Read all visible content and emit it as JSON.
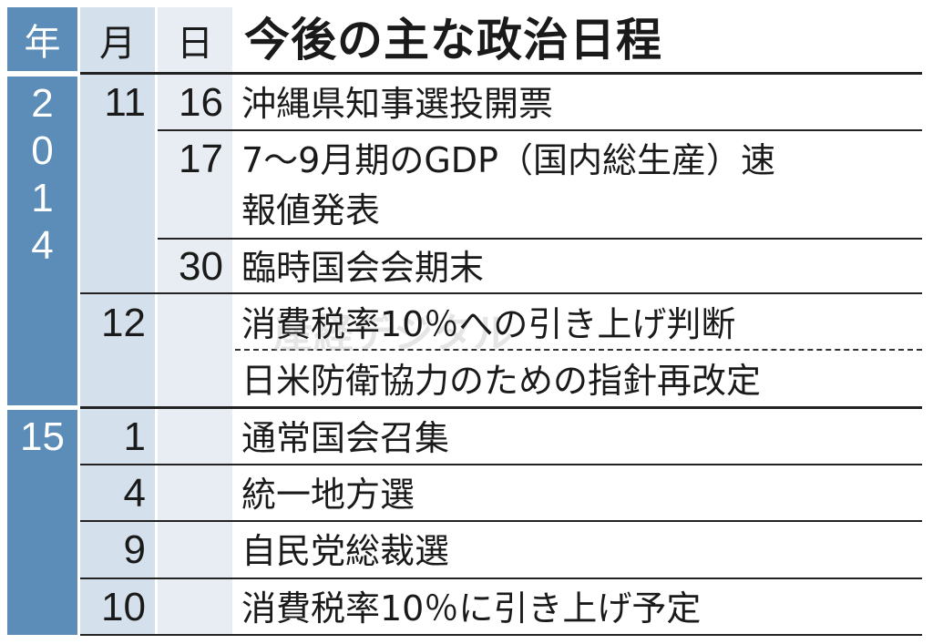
{
  "header": {
    "year": "年",
    "month": "月",
    "day": "日",
    "title": "今後の主な政治日程"
  },
  "colors": {
    "year_column": "#5b8db8",
    "month_column": "#d4e0eb",
    "day_column": "#e7edf3"
  },
  "years": [
    "2\n0\n1\n4",
    "15"
  ],
  "rows": [
    {
      "month": "11",
      "day": "16",
      "event": "沖縄県知事選投開票"
    },
    {
      "month": "",
      "day": "17",
      "event": "7～9月期のGDP（国内総生産）速",
      "event2": "報値発表"
    },
    {
      "month": "",
      "day": "30",
      "event": "臨時国会会期末"
    },
    {
      "month": "12",
      "day": "",
      "event": "消費税率10％への引き上げ判断"
    },
    {
      "month": "",
      "day": "",
      "event": "日米防衛協力のための指針再改定"
    },
    {
      "month": "1",
      "day": "",
      "event": "通常国会召集"
    },
    {
      "month": "4",
      "day": "",
      "event": "統一地方選"
    },
    {
      "month": "9",
      "day": "",
      "event": "自民党総裁選"
    },
    {
      "month": "10",
      "day": "",
      "event": "消費税率10％に引き上げ予定"
    }
  ],
  "watermark": "産経デジタル"
}
